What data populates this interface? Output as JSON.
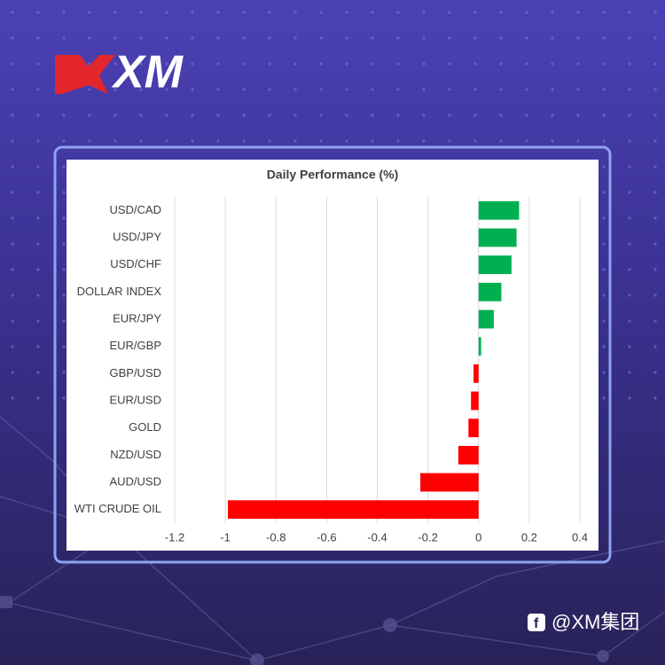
{
  "header": {
    "logo": "XM"
  },
  "footer": {
    "handle": "@XM集团"
  },
  "chart_data": {
    "type": "bar",
    "orientation": "horizontal",
    "title": "Daily Performance (%)",
    "categories": [
      "USD/CAD",
      "USD/JPY",
      "USD/CHF",
      "DOLLAR INDEX",
      "EUR/JPY",
      "EUR/GBP",
      "GBP/USD",
      "EUR/USD",
      "GOLD",
      "NZD/USD",
      "AUD/USD",
      "WTI CRUDE OIL"
    ],
    "values": [
      0.16,
      0.15,
      0.13,
      0.09,
      0.06,
      0.01,
      -0.02,
      -0.03,
      -0.04,
      -0.08,
      -0.23,
      -0.99
    ],
    "positive_color": "#00b050",
    "negative_color": "#ff0000",
    "xlim": [
      -1.2,
      0.4
    ],
    "xticks": [
      -1.2,
      -1,
      -0.8,
      -0.6,
      -0.4,
      -0.2,
      0,
      0.2,
      0.4
    ],
    "grid": true
  }
}
